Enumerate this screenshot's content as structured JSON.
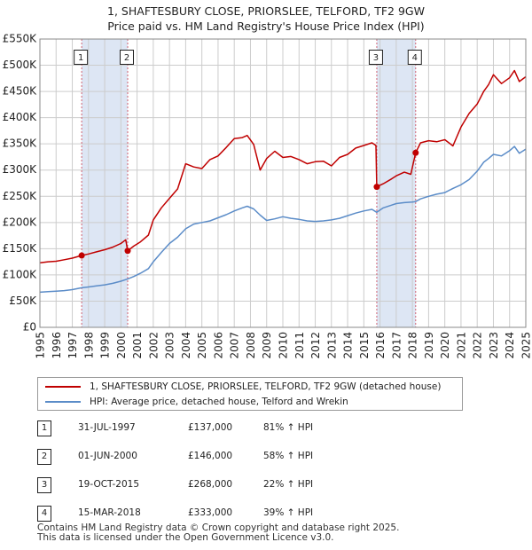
{
  "title_line1": "1, SHAFTESBURY CLOSE, PRIORSLEE, TELFORD, TF2 9GW",
  "title_line2": "Price paid vs. HM Land Registry's House Price Index (HPI)",
  "colors": {
    "property": "#c00000",
    "hpi": "#5b8cc8",
    "shade": "#dde6f4",
    "marker_line": "#d06070",
    "grid": "#cccccc",
    "frame": "#888888"
  },
  "chart_data": {
    "type": "line",
    "xlim": [
      1995,
      2025
    ],
    "ylim": [
      0,
      550000
    ],
    "x_ticks": [
      "1995",
      "1996",
      "1997",
      "1998",
      "1999",
      "2000",
      "2001",
      "2002",
      "2003",
      "2004",
      "2005",
      "2006",
      "2007",
      "2008",
      "2009",
      "2010",
      "2011",
      "2012",
      "2013",
      "2014",
      "2015",
      "2016",
      "2017",
      "2018",
      "2019",
      "2020",
      "2021",
      "2022",
      "2023",
      "2024",
      "2025"
    ],
    "y_ticks": [
      {
        "value": 0,
        "label": "£0"
      },
      {
        "value": 50000,
        "label": "£50K"
      },
      {
        "value": 100000,
        "label": "£100K"
      },
      {
        "value": 150000,
        "label": "£150K"
      },
      {
        "value": 200000,
        "label": "£200K"
      },
      {
        "value": 250000,
        "label": "£250K"
      },
      {
        "value": 300000,
        "label": "£300K"
      },
      {
        "value": 350000,
        "label": "£350K"
      },
      {
        "value": 400000,
        "label": "£400K"
      },
      {
        "value": 450000,
        "label": "£450K"
      },
      {
        "value": 500000,
        "label": "£500K"
      },
      {
        "value": 550000,
        "label": "£550K"
      }
    ],
    "shaded_ranges": [
      [
        1997.58,
        2000.42
      ],
      [
        2015.8,
        2018.2
      ]
    ],
    "series": [
      {
        "name": "1, SHAFTESBURY CLOSE, PRIORSLEE, TELFORD, TF2 9GW (detached house)",
        "color": "#c00000",
        "x": [
          1995.0,
          1995.5,
          1996.0,
          1996.5,
          1997.0,
          1997.58,
          1998.0,
          1998.5,
          1999.0,
          1999.5,
          2000.0,
          2000.3,
          2000.42,
          2000.8,
          2001.2,
          2001.7,
          2002.0,
          2002.5,
          2003.0,
          2003.5,
          2004.0,
          2004.5,
          2005.0,
          2005.5,
          2006.0,
          2006.5,
          2007.0,
          2007.5,
          2007.8,
          2008.2,
          2008.6,
          2009.0,
          2009.5,
          2010.0,
          2010.5,
          2011.0,
          2011.5,
          2012.0,
          2012.5,
          2013.0,
          2013.5,
          2014.0,
          2014.5,
          2015.0,
          2015.5,
          2015.75,
          2015.8,
          2016.2,
          2016.7,
          2017.0,
          2017.5,
          2017.9,
          2018.2,
          2018.5,
          2019.0,
          2019.5,
          2020.0,
          2020.5,
          2021.0,
          2021.5,
          2022.0,
          2022.4,
          2022.7,
          2023.0,
          2023.5,
          2024.0,
          2024.3,
          2024.6,
          2025.0
        ],
        "values": [
          123000,
          125000,
          126000,
          129000,
          132000,
          137000,
          140000,
          144000,
          148000,
          153000,
          160000,
          167000,
          146000,
          155000,
          163000,
          176000,
          205000,
          228000,
          246000,
          264000,
          312000,
          306000,
          303000,
          320000,
          327000,
          343000,
          360000,
          362000,
          366000,
          349000,
          300000,
          322000,
          336000,
          324000,
          326000,
          320000,
          312000,
          316000,
          317000,
          308000,
          324000,
          330000,
          342000,
          347000,
          352000,
          347000,
          268000,
          274000,
          283000,
          289000,
          296000,
          292000,
          333000,
          352000,
          356000,
          354000,
          358000,
          346000,
          382000,
          408000,
          426000,
          450000,
          463000,
          482000,
          465000,
          476000,
          490000,
          469000,
          478000
        ]
      },
      {
        "name": "HPI: Average price, detached house, Telford and Wrekin",
        "color": "#5b8cc8",
        "x": [
          1995.0,
          1995.5,
          1996.0,
          1996.5,
          1997.0,
          1997.58,
          1998.0,
          1998.5,
          1999.0,
          1999.5,
          2000.0,
          2000.42,
          2000.8,
          2001.2,
          2001.7,
          2002.0,
          2002.5,
          2003.0,
          2003.5,
          2004.0,
          2004.5,
          2005.0,
          2005.5,
          2006.0,
          2006.5,
          2007.0,
          2007.5,
          2007.8,
          2008.2,
          2008.6,
          2009.0,
          2009.5,
          2010.0,
          2010.5,
          2011.0,
          2011.5,
          2012.0,
          2012.5,
          2013.0,
          2013.5,
          2014.0,
          2014.5,
          2015.0,
          2015.5,
          2015.8,
          2016.2,
          2016.7,
          2017.0,
          2017.5,
          2018.0,
          2018.2,
          2018.5,
          2019.0,
          2019.5,
          2020.0,
          2020.5,
          2021.0,
          2021.5,
          2022.0,
          2022.4,
          2022.7,
          2023.0,
          2023.5,
          2024.0,
          2024.3,
          2024.6,
          2025.0
        ],
        "values": [
          67000,
          68000,
          69000,
          70000,
          72000,
          75500,
          77000,
          79000,
          81000,
          84000,
          88000,
          92400,
          97000,
          103000,
          112000,
          125000,
          143000,
          160000,
          172000,
          188000,
          197000,
          200000,
          203000,
          209000,
          215000,
          222000,
          228000,
          231000,
          226000,
          214000,
          204000,
          207000,
          211000,
          208000,
          206000,
          203000,
          202000,
          203000,
          205000,
          208000,
          213000,
          218000,
          222000,
          225000,
          219500,
          228000,
          233000,
          236000,
          238000,
          239000,
          240000,
          245000,
          250000,
          254000,
          257000,
          265000,
          272000,
          282000,
          298000,
          315000,
          322000,
          330000,
          327000,
          337000,
          345000,
          332000,
          340000
        ]
      }
    ],
    "markers": [
      {
        "label": "1",
        "x": 1997.58,
        "y": 137000
      },
      {
        "label": "2",
        "x": 2000.42,
        "y": 146000
      },
      {
        "label": "3",
        "x": 2015.8,
        "y": 268000
      },
      {
        "label": "4",
        "x": 2018.2,
        "y": 333000
      }
    ]
  },
  "legend": {
    "property_label": "1, SHAFTESBURY CLOSE, PRIORSLEE, TELFORD, TF2 9GW (detached house)",
    "hpi_label": "HPI: Average price, detached house, Telford and Wrekin"
  },
  "sales": [
    {
      "num": "1",
      "date": "31-JUL-1997",
      "price": "£137,000",
      "hpi": "81% ↑ HPI"
    },
    {
      "num": "2",
      "date": "01-JUN-2000",
      "price": "£146,000",
      "hpi": "58% ↑ HPI"
    },
    {
      "num": "3",
      "date": "19-OCT-2015",
      "price": "£268,000",
      "hpi": "22% ↑ HPI"
    },
    {
      "num": "4",
      "date": "15-MAR-2018",
      "price": "£333,000",
      "hpi": "39% ↑ HPI"
    }
  ],
  "footer_line1": "Contains HM Land Registry data © Crown copyright and database right 2025.",
  "footer_line2": "This data is licensed under the Open Government Licence v3.0."
}
